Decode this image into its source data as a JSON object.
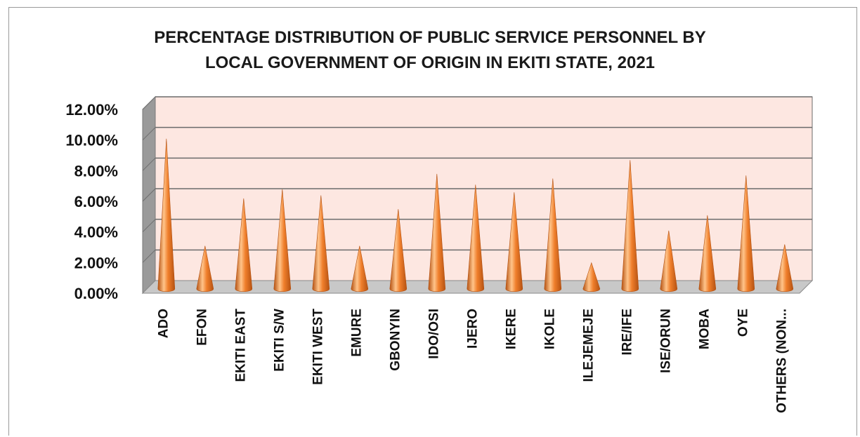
{
  "chart_data": {
    "type": "bar",
    "title": "PERCENTAGE DISTRIBUTION OF PUBLIC SERVICE PERSONNEL BY\nLOCAL GOVERNMENT OF ORIGIN IN EKITI STATE, 2021",
    "categories": [
      "ADO",
      "EFON",
      "EKITI EAST",
      "EKITI S/W",
      "EKITI WEST",
      "EMURE",
      "GBONYIN",
      "IDO/OSI",
      "IJERO",
      "IKERE",
      "IKOLE",
      "ILEJEMEJE",
      "IRE/IFE",
      "ISE/ORUN",
      "MOBA",
      "OYE",
      "OTHERS (NON..."
    ],
    "values": [
      9.8,
      2.8,
      5.9,
      6.5,
      6.1,
      2.8,
      5.2,
      7.5,
      6.8,
      6.3,
      7.2,
      1.7,
      8.4,
      3.8,
      4.8,
      7.4,
      2.9
    ],
    "ytick_labels": [
      "0.00%",
      "2.00%",
      "4.00%",
      "6.00%",
      "8.00%",
      "10.00%",
      "12.00%"
    ],
    "ylim": [
      0,
      12
    ],
    "grid": true,
    "legend": false,
    "colors": {
      "bar": "#f07f2c",
      "bar_light": "#ffc48a",
      "bar_dark": "#b55212",
      "plot_bg": "#fde7e1",
      "wall_side": "#9a9a9a",
      "floor": "#c8c8c8",
      "grid": "#6b6b6b"
    }
  }
}
